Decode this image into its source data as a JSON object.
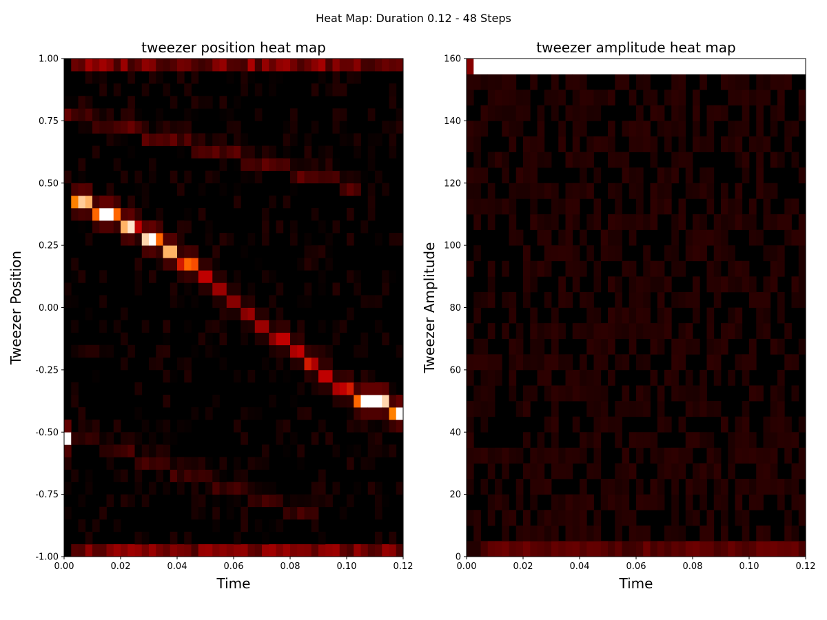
{
  "figure": {
    "suptitle": "Heat Map: Duration 0.12 - 48 Steps"
  },
  "chart_data": [
    {
      "type": "heatmap",
      "title": "tweezer position heat map",
      "xlabel": "Time",
      "ylabel": "Tweezer Position",
      "xlim": [
        0,
        0.12
      ],
      "ylim": [
        -1,
        1
      ],
      "xticks": [
        "0.00",
        "0.02",
        "0.04",
        "0.06",
        "0.08",
        "0.10",
        "0.12"
      ],
      "yticks": [
        "-1.00",
        "-0.75",
        "-0.50",
        "-0.25",
        "0.00",
        "0.25",
        "0.50",
        "0.75",
        "1.00"
      ],
      "n_time_steps": 48,
      "n_bins": 40,
      "colormap": "gist_heat",
      "background_color": "#000000",
      "hot_path": [
        {
          "t": 0.0,
          "pos": -0.52,
          "level": 1.0
        },
        {
          "t": 0.003,
          "pos": 0.42,
          "level": 0.75
        },
        {
          "t": 0.005,
          "pos": 0.42,
          "level": 0.9
        },
        {
          "t": 0.008,
          "pos": 0.42,
          "level": 0.85
        },
        {
          "t": 0.01,
          "pos": 0.38,
          "level": 0.7
        },
        {
          "t": 0.013,
          "pos": 0.38,
          "level": 1.0
        },
        {
          "t": 0.015,
          "pos": 0.38,
          "level": 1.0
        },
        {
          "t": 0.018,
          "pos": 0.38,
          "level": 0.7
        },
        {
          "t": 0.02,
          "pos": 0.33,
          "level": 0.85
        },
        {
          "t": 0.023,
          "pos": 0.33,
          "level": 0.95
        },
        {
          "t": 0.025,
          "pos": 0.33,
          "level": 0.5
        },
        {
          "t": 0.028,
          "pos": 0.28,
          "level": 0.92
        },
        {
          "t": 0.03,
          "pos": 0.28,
          "level": 1.0
        },
        {
          "t": 0.033,
          "pos": 0.28,
          "level": 0.7
        },
        {
          "t": 0.035,
          "pos": 0.23,
          "level": 0.85
        },
        {
          "t": 0.038,
          "pos": 0.23,
          "level": 0.85
        },
        {
          "t": 0.04,
          "pos": 0.18,
          "level": 0.55
        },
        {
          "t": 0.043,
          "pos": 0.18,
          "level": 0.7
        },
        {
          "t": 0.045,
          "pos": 0.18,
          "level": 0.65
        },
        {
          "t": 0.048,
          "pos": 0.13,
          "level": 0.5
        },
        {
          "t": 0.05,
          "pos": 0.13,
          "level": 0.5
        },
        {
          "t": 0.053,
          "pos": 0.08,
          "level": 0.4
        },
        {
          "t": 0.055,
          "pos": 0.08,
          "level": 0.4
        },
        {
          "t": 0.058,
          "pos": 0.03,
          "level": 0.35
        },
        {
          "t": 0.06,
          "pos": 0.03,
          "level": 0.35
        },
        {
          "t": 0.063,
          "pos": -0.02,
          "level": 0.35
        },
        {
          "t": 0.065,
          "pos": -0.02,
          "level": 0.4
        },
        {
          "t": 0.068,
          "pos": -0.07,
          "level": 0.4
        },
        {
          "t": 0.07,
          "pos": -0.07,
          "level": 0.4
        },
        {
          "t": 0.073,
          "pos": -0.12,
          "level": 0.35
        },
        {
          "t": 0.075,
          "pos": -0.12,
          "level": 0.5
        },
        {
          "t": 0.078,
          "pos": -0.12,
          "level": 0.5
        },
        {
          "t": 0.08,
          "pos": -0.17,
          "level": 0.45
        },
        {
          "t": 0.083,
          "pos": -0.17,
          "level": 0.5
        },
        {
          "t": 0.085,
          "pos": -0.22,
          "level": 0.55
        },
        {
          "t": 0.088,
          "pos": -0.22,
          "level": 0.45
        },
        {
          "t": 0.09,
          "pos": -0.27,
          "level": 0.5
        },
        {
          "t": 0.093,
          "pos": -0.27,
          "level": 0.5
        },
        {
          "t": 0.095,
          "pos": -0.32,
          "level": 0.45
        },
        {
          "t": 0.098,
          "pos": -0.32,
          "level": 0.5
        },
        {
          "t": 0.1,
          "pos": -0.32,
          "level": 0.55
        },
        {
          "t": 0.103,
          "pos": -0.37,
          "level": 0.7
        },
        {
          "t": 0.105,
          "pos": -0.37,
          "level": 1.0
        },
        {
          "t": 0.108,
          "pos": -0.37,
          "level": 1.0
        },
        {
          "t": 0.11,
          "pos": -0.37,
          "level": 1.0
        },
        {
          "t": 0.113,
          "pos": -0.37,
          "level": 0.92
        },
        {
          "t": 0.115,
          "pos": -0.42,
          "level": 0.75
        },
        {
          "t": 0.118,
          "pos": -0.42,
          "level": 1.0
        }
      ],
      "upper_faint_band": {
        "from": [
          0.0,
          0.78
        ],
        "to": [
          0.105,
          0.48
        ],
        "level": 0.2
      },
      "lower_faint_band": {
        "from": [
          0.0,
          -0.5
        ],
        "to": [
          0.09,
          -0.85
        ],
        "level": 0.15
      },
      "top_row": {
        "pos": 0.98,
        "level": 0.3
      },
      "bottom_row": {
        "pos": -0.98,
        "level": 0.3
      }
    },
    {
      "type": "heatmap",
      "title": "tweezer amplitude heat map",
      "xlabel": "Time",
      "ylabel": "Tweezer Amplitude",
      "xlim": [
        0,
        0.12
      ],
      "ylim": [
        0,
        160
      ],
      "xticks": [
        "0.00",
        "0.02",
        "0.04",
        "0.06",
        "0.08",
        "0.10",
        "0.12"
      ],
      "yticks": [
        "0",
        "20",
        "40",
        "60",
        "80",
        "100",
        "120",
        "140",
        "160"
      ],
      "n_time_steps": 48,
      "n_bins": 32,
      "colormap": "gist_heat",
      "background_color": "#000000",
      "top_bin": {
        "range": [
          155,
          160
        ],
        "first_step_level": 0.35,
        "other_level": 1.0
      },
      "bottom_bin": {
        "range": [
          0,
          5
        ],
        "level": 0.22
      },
      "interior_level": 0.06
    }
  ]
}
